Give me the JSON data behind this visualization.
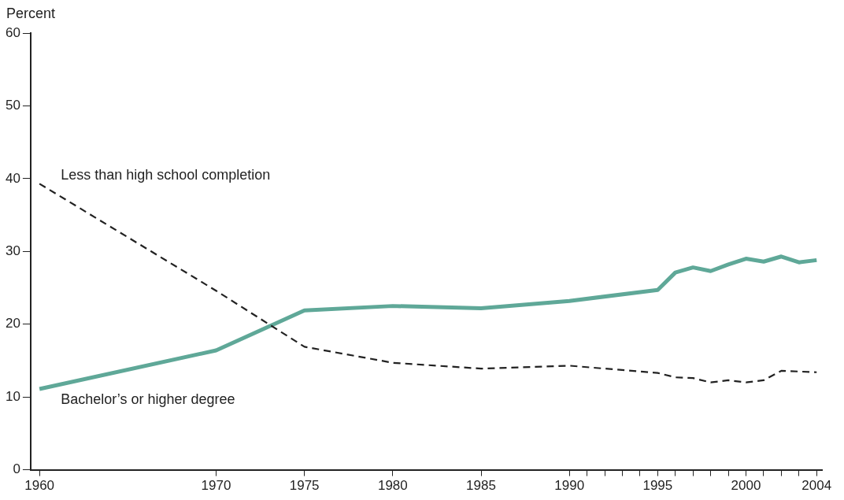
{
  "chart_data": {
    "type": "line",
    "ylabel": "Percent",
    "marker": "none",
    "grid": false,
    "legend": false,
    "xlim": [
      1959.5,
      2004.3
    ],
    "ylim": [
      0,
      60
    ],
    "xticks": [
      1960,
      1970,
      1975,
      1980,
      1985,
      1990,
      {
        "value": 1991,
        "label": null
      },
      {
        "value": 1992,
        "label": null
      },
      {
        "value": 1993,
        "label": null
      },
      {
        "value": 1994,
        "label": null
      },
      1995,
      {
        "value": 1996,
        "label": null
      },
      {
        "value": 1997,
        "label": null
      },
      {
        "value": 1998,
        "label": null
      },
      {
        "value": 1999,
        "label": null
      },
      2000,
      {
        "value": 2001,
        "label": null
      },
      {
        "value": 2002,
        "label": null
      },
      {
        "value": 2003,
        "label": null
      },
      2004
    ],
    "yticks": [
      0,
      10,
      20,
      30,
      40,
      50,
      60
    ],
    "x": [
      1960,
      1970,
      1975,
      1980,
      1985,
      1990,
      1995,
      1996,
      1997,
      1998,
      1999,
      2000,
      2001,
      2002,
      2003,
      2004
    ],
    "series": [
      {
        "name": "Less than high school completion",
        "color": "#222222",
        "line_style": "dashed",
        "values": [
          39.3,
          24.6,
          16.9,
          14.7,
          13.9,
          14.3,
          13.3,
          12.7,
          12.6,
          12.0,
          12.3,
          12.0,
          12.3,
          13.6,
          13.5,
          13.4
        ]
      },
      {
        "name": "Bachelor’s or higher degree",
        "color": "#5fa898",
        "line_style": "solid",
        "values": [
          11.1,
          16.4,
          21.9,
          22.5,
          22.2,
          23.2,
          24.7,
          27.1,
          27.8,
          27.3,
          28.2,
          29.0,
          28.6,
          29.3,
          28.5,
          28.8
        ]
      }
    ]
  }
}
